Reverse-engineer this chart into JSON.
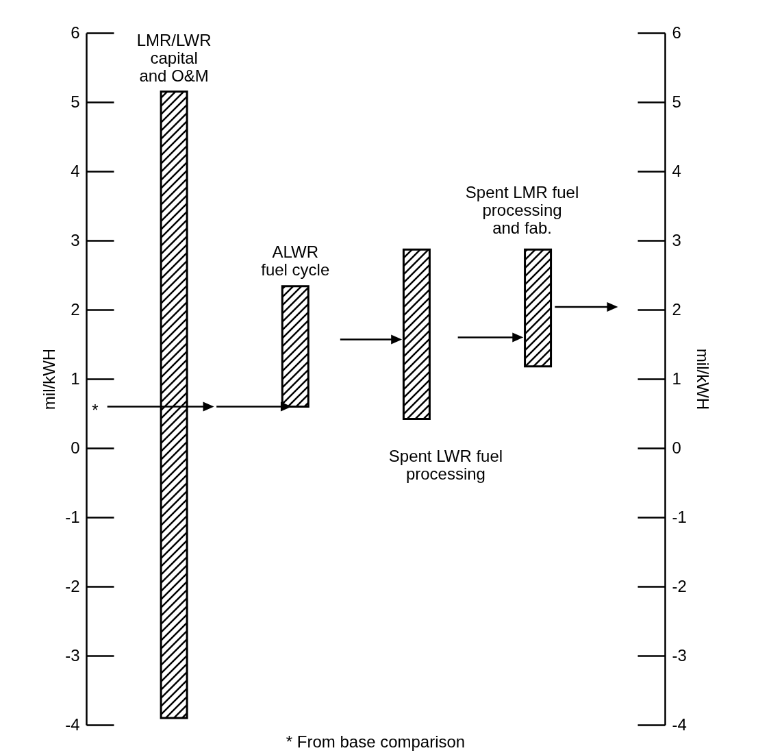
{
  "chart_data": {
    "type": "bar",
    "ylabel": "mil/kWH",
    "y2label": "mil/kWH",
    "categories": [
      null,
      null,
      null,
      null
    ],
    "ylim": [
      -4,
      6
    ],
    "yticks": [
      -4,
      -3,
      -2,
      -1,
      0,
      1,
      2,
      3,
      4,
      5,
      6
    ],
    "y2lim": [
      -4,
      6
    ],
    "y2ticks": [
      -4,
      -3,
      -2,
      -1,
      0,
      1,
      2,
      3,
      4,
      5,
      6
    ],
    "tick_labels": "y",
    "grid": false,
    "series": [
      {
        "color": "#000000",
        "base": [
          -3.9,
          0.6,
          0.42,
          1.18
        ],
        "values": [
          9.05,
          1.74,
          2.45,
          1.69
        ]
      }
    ],
    "annotations": [
      "LMR/LWR\ncapital\nand O&M",
      "ALWR\nfuel cycle",
      "Spent LWR  fuel\nprocessing",
      "Spent LMR fuel\nprocessing\nand fab.",
      "*",
      "* From base comparison"
    ]
  }
}
